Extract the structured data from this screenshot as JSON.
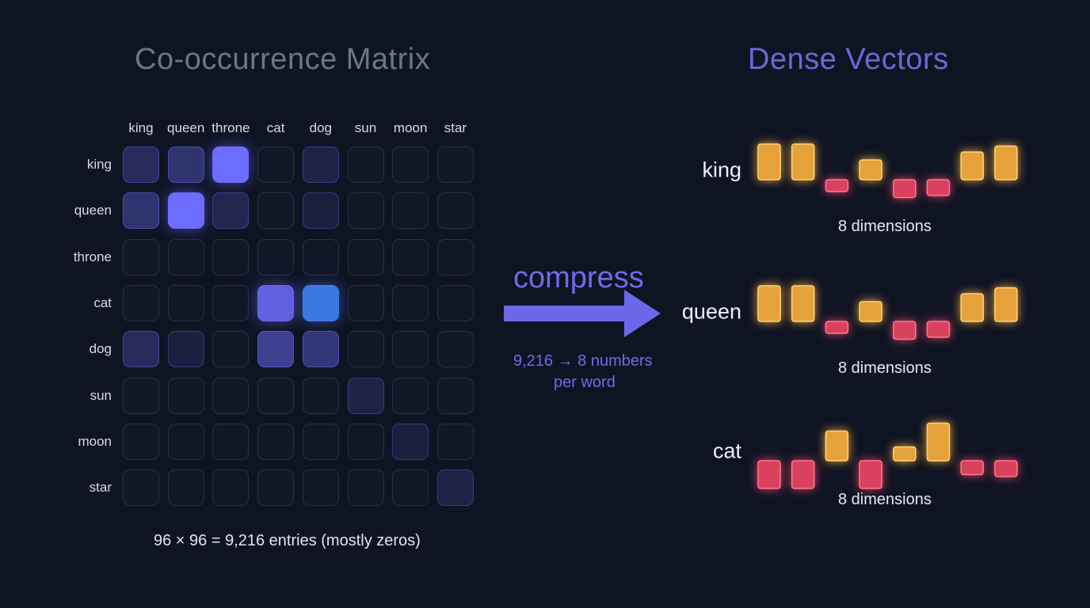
{
  "matrix": {
    "title": "Co-occurrence Matrix",
    "columns": [
      "king",
      "queen",
      "throne",
      "cat",
      "dog",
      "sun",
      "moon",
      "star"
    ],
    "rows": [
      "king",
      "queen",
      "throne",
      "cat",
      "dog",
      "sun",
      "moon",
      "star"
    ],
    "intensities": [
      [
        0.35,
        0.45,
        1.0,
        0.0,
        0.25,
        0.0,
        0.0,
        0.0
      ],
      [
        0.45,
        1.0,
        0.3,
        0.0,
        0.2,
        0.0,
        0.0,
        0.0
      ],
      [
        0.0,
        0.0,
        0.0,
        0.0,
        0.0,
        0.0,
        0.0,
        0.0
      ],
      [
        0.0,
        0.0,
        0.0,
        0.9,
        0.95,
        0.0,
        0.0,
        0.0
      ],
      [
        0.35,
        0.2,
        0.0,
        0.6,
        0.5,
        0.0,
        0.0,
        0.0
      ],
      [
        0.0,
        0.0,
        0.0,
        0.0,
        0.0,
        0.25,
        0.0,
        0.0
      ],
      [
        0.0,
        0.0,
        0.0,
        0.0,
        0.0,
        0.0,
        0.2,
        0.0
      ],
      [
        0.0,
        0.0,
        0.0,
        0.0,
        0.0,
        0.0,
        0.0,
        0.25
      ]
    ],
    "accent_color": "#6c6cff",
    "secondary_accent_color": "#3f7ff0",
    "caption": "96 × 96 = 9,216 entries (mostly zeros)"
  },
  "compression": {
    "label": "compress",
    "stat_line1": "9,216 → 8 numbers",
    "stat_line2": "per word",
    "color": "#6d6ce8",
    "arrow_icon": "arrow-right-icon"
  },
  "vectors": {
    "title": "Dense Vectors",
    "positive_color": "#e6a23a",
    "negative_color": "#d9415f",
    "dimension_label": "8 dimensions",
    "items": [
      {
        "word": "king",
        "values": [
          0.9,
          0.9,
          -0.3,
          0.5,
          -0.45,
          -0.4,
          0.7,
          0.85
        ]
      },
      {
        "word": "queen",
        "values": [
          0.9,
          0.9,
          -0.3,
          0.5,
          -0.45,
          -0.4,
          0.7,
          0.85
        ]
      },
      {
        "word": "cat",
        "values": [
          -0.7,
          -0.7,
          0.75,
          -0.7,
          0.35,
          0.95,
          -0.35,
          -0.4
        ]
      }
    ]
  }
}
